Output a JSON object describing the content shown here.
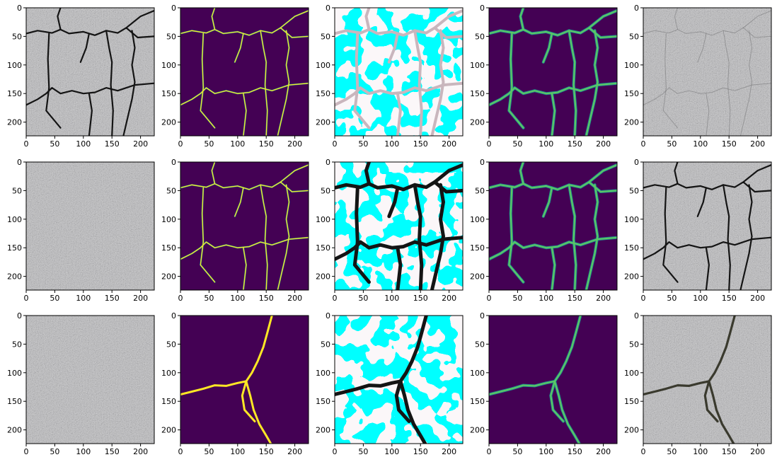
{
  "chart_data": {
    "type": "image-grid",
    "layout": {
      "rows": 3,
      "cols": 5
    },
    "axes": {
      "xlim": [
        0,
        224
      ],
      "ylim": [
        224,
        0
      ],
      "xticks": [
        0,
        50,
        100,
        150,
        200
      ],
      "yticks": [
        0,
        50,
        100,
        150,
        200
      ],
      "xtick_labels": [
        "0",
        "50",
        "100",
        "150",
        "200"
      ],
      "ytick_labels": [
        "0",
        "50",
        "100",
        "150",
        "200"
      ]
    },
    "panels": [
      {
        "row": 1,
        "col": 1,
        "content": "pavement-photo-cracked"
      },
      {
        "row": 1,
        "col": 2,
        "content": "crack-mask-yellow-on-purple"
      },
      {
        "row": 1,
        "col": 3,
        "content": "cyan-white-activation-map"
      },
      {
        "row": 1,
        "col": 4,
        "content": "predicted-crack-map-green-on-purple"
      },
      {
        "row": 1,
        "col": 5,
        "content": "pavement-photo-faint-cracks"
      },
      {
        "row": 2,
        "col": 1,
        "content": "pavement-photo"
      },
      {
        "row": 2,
        "col": 2,
        "content": "crack-mask-yellow-on-purple"
      },
      {
        "row": 2,
        "col": 3,
        "content": "cyan-white-activation-map-black-cracks"
      },
      {
        "row": 2,
        "col": 4,
        "content": "predicted-crack-map-green-on-purple"
      },
      {
        "row": 2,
        "col": 5,
        "content": "pavement-photo-cracked"
      },
      {
        "row": 3,
        "col": 1,
        "content": "pavement-photo"
      },
      {
        "row": 3,
        "col": 2,
        "content": "crack-mask-y-shape"
      },
      {
        "row": 3,
        "col": 3,
        "content": "cyan-white-activation-map-y-crack"
      },
      {
        "row": 3,
        "col": 4,
        "content": "predicted-crack-map-y-shape"
      },
      {
        "row": 3,
        "col": 5,
        "content": "pavement-photo-y-crack"
      }
    ],
    "colors": {
      "mask_background": "#440154",
      "mask_crack": "#fde725",
      "pred_crack": "#5ec962",
      "pred_edge": "#21918c",
      "activation_cyan": "#00ffff",
      "activation_white": "#fbf7f9",
      "crack_dark": "#141414",
      "asphalt": "#8f8f92"
    }
  }
}
